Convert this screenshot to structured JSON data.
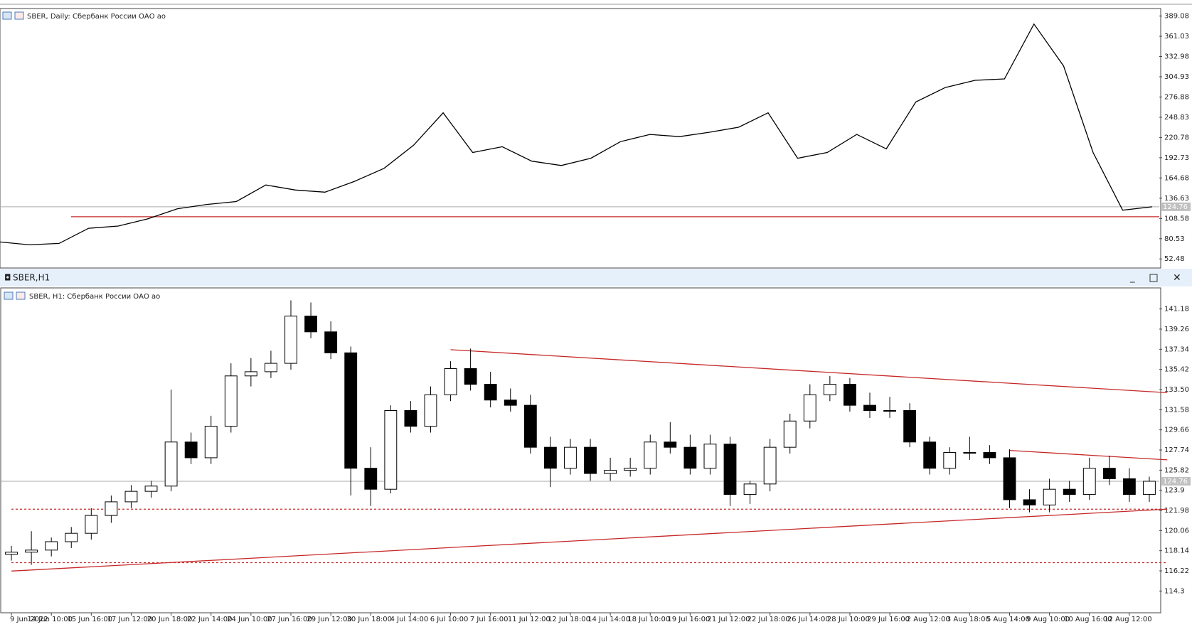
{
  "window_title": "SBER,H1",
  "chart_data": [
    {
      "type": "line",
      "title": "SBER, Daily:  Сбербанк России ОАО ао",
      "color": "#000000",
      "values": [
        76,
        72,
        74,
        95,
        98,
        108,
        122,
        128,
        132,
        155,
        148,
        145,
        160,
        178,
        210,
        255,
        200,
        208,
        188,
        182,
        192,
        215,
        225,
        222,
        228,
        235,
        255,
        192,
        200,
        225,
        205,
        270,
        290,
        300,
        302,
        378,
        320,
        200,
        120,
        124.76
      ],
      "ylim": [
        40.9,
        398.5
      ],
      "yticks": [
        389.08,
        361.03,
        332.98,
        304.93,
        276.88,
        248.83,
        220.78,
        192.73,
        164.68,
        136.63,
        108.58,
        80.53,
        52.48
      ],
      "current_price": 124.76,
      "levels": [
        {
          "value": 111,
          "color": "#c62828"
        }
      ]
    },
    {
      "type": "candlestick",
      "title": "SBER, H1:  Сбербанк России ОАО ао",
      "color": "#000000",
      "categories": [
        "9 Jun 2022",
        null,
        "14 Jun 10:00",
        null,
        "15 Jun 16:00",
        null,
        "17 Jun 12:00",
        null,
        "20 Jun 18:00",
        null,
        "22 Jun 14:00",
        null,
        "24 Jun 10:00",
        null,
        "27 Jun 16:00",
        null,
        "29 Jun 12:00",
        null,
        "30 Jun 18:00",
        null,
        "4 Jul 14:00",
        null,
        "6 Jul 10:00",
        null,
        "7 Jul 16:00",
        null,
        "11 Jul 12:00",
        null,
        "12 Jul 18:00",
        null,
        "14 Jul 14:00",
        null,
        "18 Jul 10:00",
        null,
        "19 Jul 16:00",
        null,
        "21 Jul 12:00",
        null,
        "22 Jul 18:00",
        null,
        "26 Jul 14:00",
        null,
        "28 Jul 10:00",
        null,
        "29 Jul 16:00",
        null,
        "2 Aug 12:00",
        null,
        "3 Aug 18:00",
        null,
        "5 Aug 14:00",
        null,
        "9 Aug 10:00",
        null,
        "10 Aug 16:00",
        null,
        "12 Aug 12:00",
        null
      ],
      "open": [
        117.8,
        118.0,
        118.2,
        119.0,
        119.8,
        121.5,
        122.8,
        123.8,
        124.3,
        128.5,
        127.0,
        130.0,
        134.8,
        135.2,
        136.0,
        140.5,
        139.0,
        137.0,
        126.0,
        124.0,
        131.5,
        130.0,
        133.0,
        135.5,
        134.0,
        132.5,
        132.0,
        128.0,
        126.0,
        128.0,
        125.5,
        125.8,
        126.0,
        128.5,
        128.0,
        126.0,
        128.3,
        123.5,
        124.5,
        128.0,
        130.5,
        133.0,
        134.0,
        132.0,
        131.5,
        131.5,
        128.5,
        126.0,
        127.5,
        127.5,
        127.0,
        123.0,
        122.5,
        124.0,
        123.5,
        126.0,
        125.0,
        123.5
      ],
      "high": [
        118.6,
        120.0,
        119.4,
        120.4,
        122.2,
        123.4,
        124.4,
        124.8,
        133.5,
        129.4,
        131.0,
        136.0,
        136.5,
        137.2,
        142.0,
        141.8,
        140.0,
        137.6,
        128.0,
        132.0,
        132.4,
        133.8,
        136.2,
        137.4,
        135.2,
        133.6,
        133.0,
        129.0,
        128.8,
        128.8,
        127.0,
        127.0,
        129.2,
        130.4,
        129.2,
        129.2,
        129.0,
        124.8,
        128.8,
        131.2,
        134.0,
        134.8,
        134.6,
        133.2,
        132.8,
        132.2,
        129.0,
        128.0,
        129.0,
        128.2,
        127.8,
        124.0,
        125.0,
        124.8,
        127.0,
        127.2,
        126.0,
        125.2
      ],
      "low": [
        117.2,
        116.8,
        117.6,
        118.4,
        119.2,
        120.8,
        122.2,
        123.2,
        123.8,
        126.4,
        126.4,
        129.4,
        133.8,
        134.6,
        135.4,
        138.4,
        136.4,
        123.4,
        122.4,
        123.6,
        129.4,
        129.4,
        132.4,
        133.4,
        131.8,
        131.4,
        127.4,
        124.2,
        125.4,
        124.8,
        124.8,
        125.2,
        125.4,
        127.4,
        125.4,
        125.4,
        122.4,
        122.6,
        123.8,
        127.4,
        129.8,
        132.4,
        131.4,
        130.8,
        130.8,
        128.0,
        125.4,
        125.4,
        126.8,
        126.4,
        122.2,
        121.8,
        121.8,
        122.8,
        123.0,
        124.4,
        122.8,
        122.8
      ],
      "close": [
        118.0,
        118.2,
        119.0,
        119.8,
        121.5,
        122.8,
        123.8,
        124.3,
        128.5,
        127.0,
        130.0,
        134.8,
        135.2,
        136.0,
        140.5,
        139.0,
        137.0,
        126.0,
        124.0,
        131.5,
        130.0,
        133.0,
        135.5,
        134.0,
        132.5,
        132.0,
        128.0,
        126.0,
        128.0,
        125.5,
        125.8,
        126.0,
        128.5,
        128.0,
        126.0,
        128.3,
        123.5,
        124.5,
        128.0,
        130.5,
        133.0,
        134.0,
        132.0,
        131.5,
        131.5,
        128.5,
        126.0,
        127.5,
        127.5,
        127.0,
        123.0,
        122.5,
        124.0,
        123.5,
        126.0,
        125.0,
        123.5,
        124.76
      ],
      "ylim": [
        112.36,
        143.12
      ],
      "yticks": [
        141.18,
        139.26,
        137.34,
        135.42,
        {
          "value": 133.5,
          "label": "133.50"
        },
        131.58,
        129.66,
        127.74,
        125.82,
        123.9,
        121.98,
        120.06,
        118.14,
        116.22,
        114.3
      ],
      "current_price": 124.76,
      "trend_lines": [
        {
          "x": [
            22,
            57.9
          ],
          "y": [
            137.3,
            133.2
          ],
          "color": "#c62828",
          "style": "solid"
        },
        {
          "x": [
            50,
            57.9
          ],
          "y": [
            127.7,
            126.8
          ],
          "color": "#c62828",
          "style": "solid"
        },
        {
          "x": [
            0,
            57.9
          ],
          "y": [
            116.2,
            122.1
          ],
          "color": "#c62828",
          "style": "solid"
        },
        {
          "x": [
            0,
            57.9
          ],
          "y": [
            122.1,
            122.1
          ],
          "color": "#c62828",
          "style": "dashed"
        },
        {
          "x": [
            0,
            57.9
          ],
          "y": [
            117.0,
            117.0
          ],
          "color": "#c62828",
          "style": "dashed"
        }
      ]
    }
  ]
}
